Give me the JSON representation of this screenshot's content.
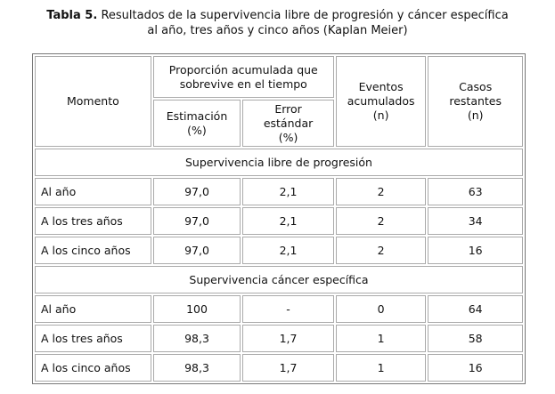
{
  "title": {
    "label": "Tabla 5.",
    "lines": [
      "Resultados de la supervivencia libre de progresión y cáncer específica",
      "al año, tres años y cinco años (Kaplan Meier)"
    ]
  },
  "table": {
    "header": {
      "moment": [
        "Momento"
      ],
      "proportion": [
        "Proporción acumulada que",
        "sobrevive en el tiempo"
      ],
      "estimate": [
        "Estimación",
        "(%)"
      ],
      "se": [
        "Error",
        "estándar",
        "(%)"
      ],
      "events": [
        "Eventos",
        "acumulados",
        "(n)"
      ],
      "cases": [
        "Casos",
        "restantes",
        "(n)"
      ]
    },
    "sections": [
      {
        "title": "Supervivencia libre de progresión",
        "rows": [
          [
            "Al año",
            "97,0",
            "2,1",
            "2",
            "63"
          ],
          [
            "A los tres años",
            "97,0",
            "2,1",
            "2",
            "34"
          ],
          [
            "A los cinco años",
            "97,0",
            "2,1",
            "2",
            "16"
          ]
        ]
      },
      {
        "title": "Supervivencia cáncer específica",
        "rows": [
          [
            "Al año",
            "100",
            "-",
            "0",
            "64"
          ],
          [
            "A los tres años",
            "98,3",
            "1,7",
            "1",
            "58"
          ],
          [
            "A los cinco años",
            "98,3",
            "1,7",
            "1",
            "16"
          ]
        ]
      }
    ]
  }
}
